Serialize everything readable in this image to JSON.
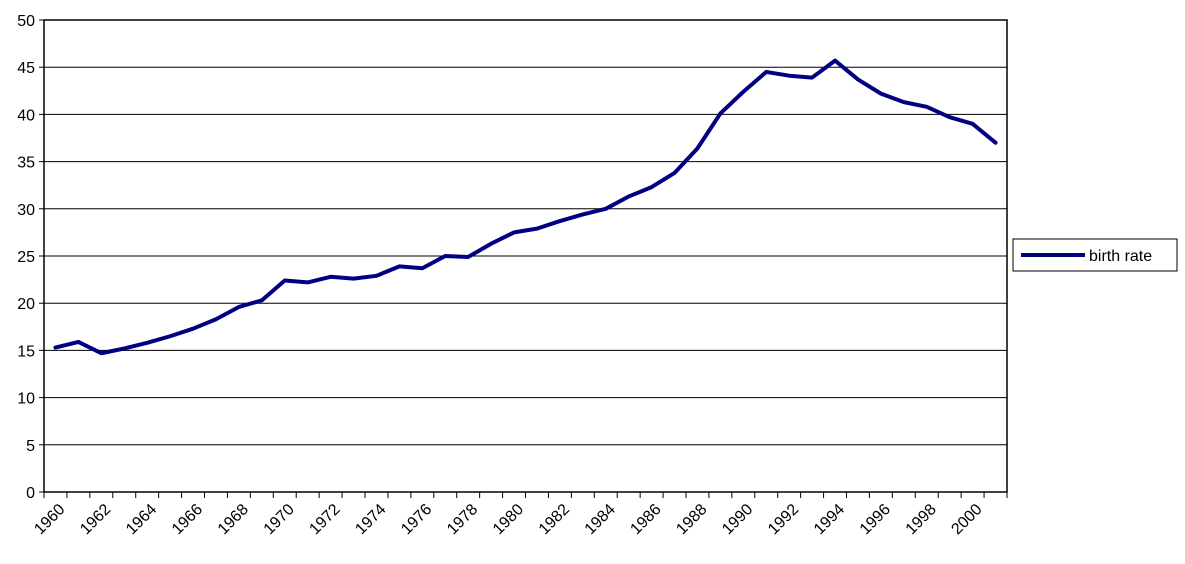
{
  "chart_data": {
    "type": "line",
    "categories": [
      "1960",
      null,
      "1962",
      null,
      "1964",
      null,
      "1966",
      null,
      "1968",
      null,
      "1970",
      null,
      "1972",
      null,
      "1974",
      null,
      "1976",
      null,
      "1978",
      null,
      "1980",
      null,
      "1982",
      null,
      "1984",
      null,
      "1986",
      null,
      "1988",
      null,
      "1990",
      null,
      "1992",
      null,
      "1994",
      null,
      "1996",
      null,
      "1998",
      null,
      "2000",
      null
    ],
    "series": [
      {
        "name": "birth rate",
        "color": "#000080",
        "values": [
          15.3,
          15.9,
          14.7,
          15.2,
          15.8,
          16.5,
          17.3,
          18.3,
          19.6,
          20.3,
          22.4,
          22.2,
          22.8,
          22.6,
          22.9,
          23.9,
          23.7,
          25.0,
          24.9,
          26.3,
          27.5,
          27.9,
          28.7,
          29.4,
          30.0,
          31.3,
          32.3,
          33.8,
          36.4,
          40.1,
          42.4,
          44.5,
          44.1,
          43.9,
          45.7,
          43.7,
          42.2,
          41.3,
          40.8,
          39.7,
          39.0,
          37.0
        ]
      }
    ],
    "ylim": [
      0,
      50
    ],
    "yticks": [
      0,
      5,
      10,
      15,
      20,
      25,
      30,
      35,
      40,
      45,
      50
    ],
    "grid": true,
    "legend": "right"
  }
}
